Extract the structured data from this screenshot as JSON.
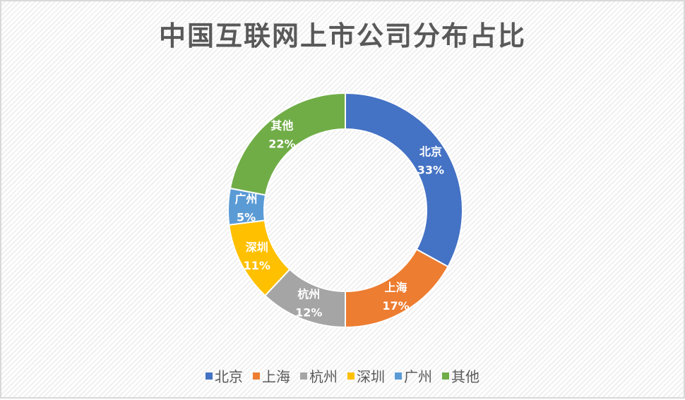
{
  "chart_data": {
    "type": "pie",
    "variant": "donut",
    "title": "中国互联网上市公司分布占比",
    "categories": [
      "北京",
      "上海",
      "杭州",
      "深圳",
      "广州",
      "其他"
    ],
    "values": [
      33,
      17,
      12,
      11,
      5,
      22
    ],
    "labels": [
      "33%",
      "17%",
      "12%",
      "11%",
      "5%",
      "22%"
    ],
    "colors": [
      "#4472c4",
      "#ed7d31",
      "#a5a5a5",
      "#ffc000",
      "#5b9bd5",
      "#70ad47"
    ],
    "legend": "bottom"
  }
}
